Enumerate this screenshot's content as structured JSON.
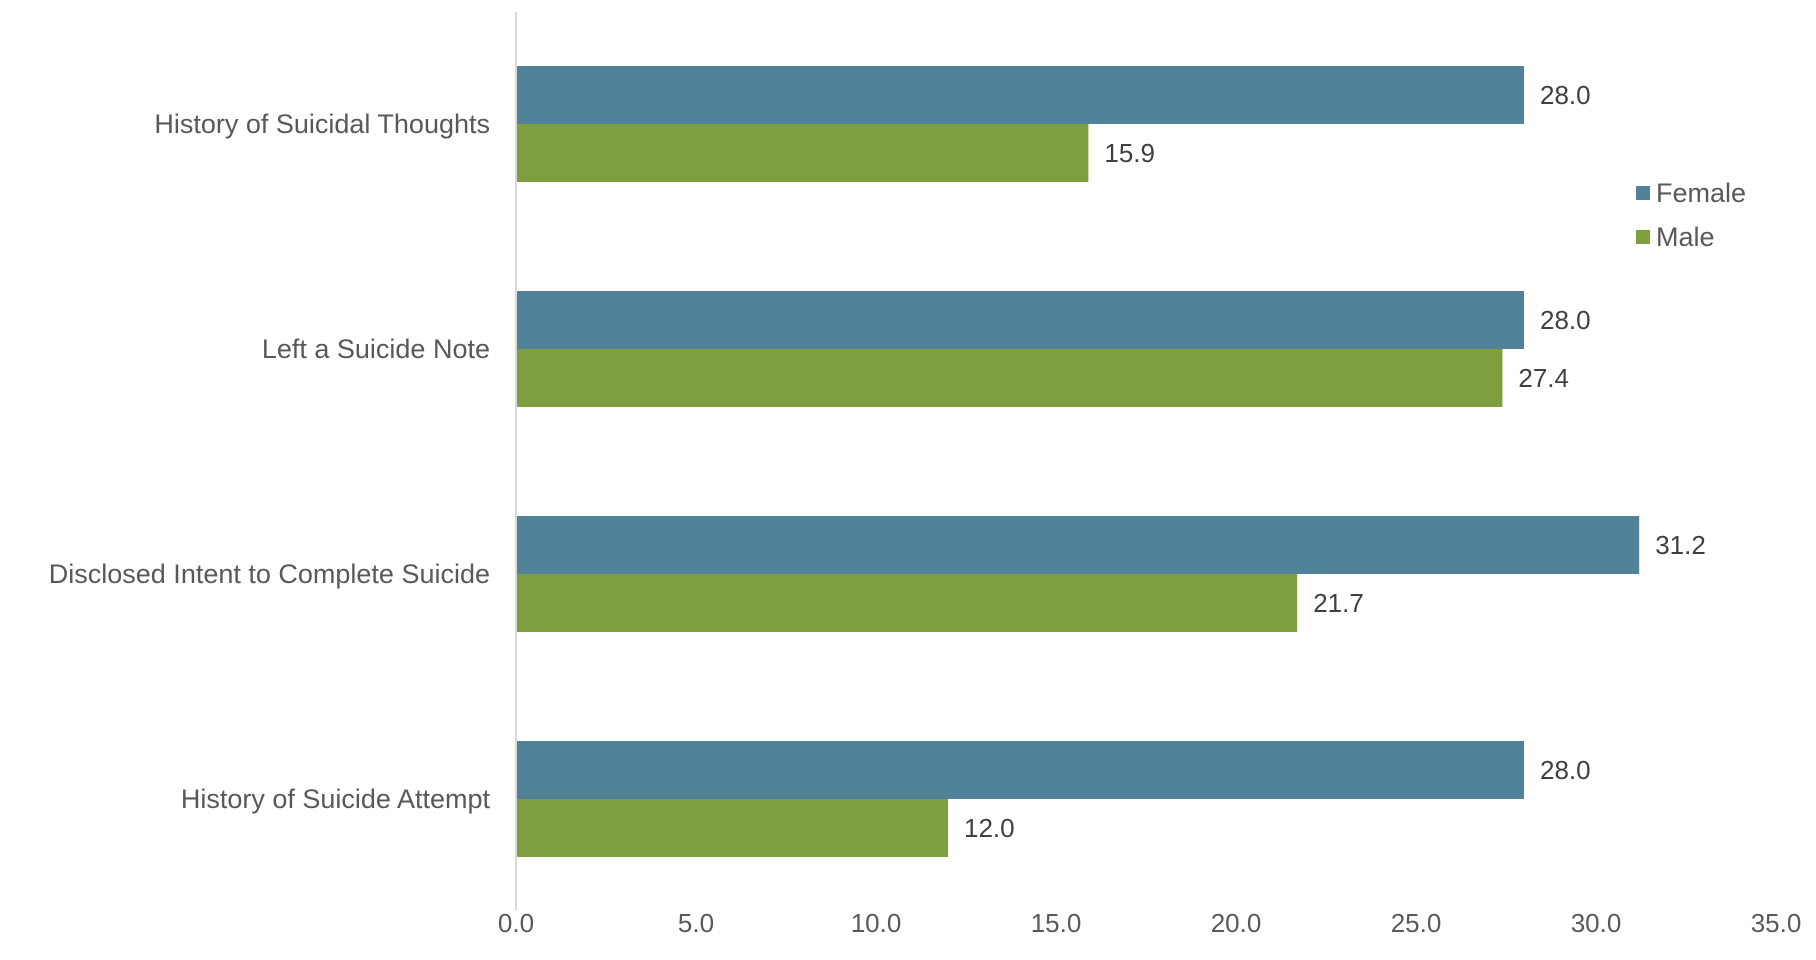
{
  "chart_data": {
    "type": "bar",
    "orientation": "horizontal",
    "categories": [
      "History of Suicidal Thoughts",
      "Left a Suicide Note",
      "Disclosed Intent to Complete Suicide",
      "History of Suicide Attempt"
    ],
    "series": [
      {
        "name": "Female",
        "color": "#52829A",
        "values": [
          28.0,
          28.0,
          31.2,
          28.0
        ]
      },
      {
        "name": "Male",
        "color": "#7F9E3F",
        "values": [
          15.9,
          27.4,
          21.7,
          12.0
        ]
      }
    ],
    "xlim": [
      0,
      35
    ],
    "xticks": [
      0,
      5,
      10,
      15,
      20,
      25,
      30,
      35
    ],
    "tick_format_decimals": 1,
    "value_label_decimals": 1,
    "grid": false,
    "legend_position": "right",
    "axis_color": "#D9D9D9",
    "title": "",
    "xlabel": "",
    "ylabel": ""
  }
}
